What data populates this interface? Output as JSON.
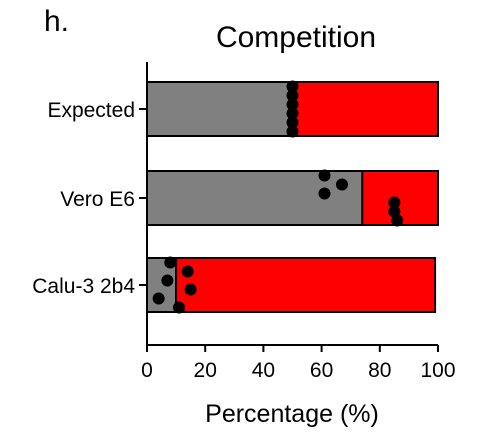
{
  "panel_label": "h.",
  "chart_data": {
    "type": "bar",
    "orientation": "horizontal",
    "stacked": true,
    "title": "Competition",
    "xlabel": "Percentage (%)",
    "ylabel": "",
    "xlim": [
      0,
      100
    ],
    "xticks": [
      0,
      20,
      40,
      60,
      80,
      100
    ],
    "categories": [
      "Expected",
      "Vero E6",
      "Calu-3 2b4"
    ],
    "series": [
      {
        "color": "#808080",
        "values": [
          49,
          74,
          10
        ]
      },
      {
        "color": "#ff0000",
        "values": [
          51,
          26,
          89
        ]
      }
    ],
    "points": [
      {
        "category": "Expected",
        "x": [
          50,
          50,
          50,
          50,
          50,
          50
        ]
      },
      {
        "category": "Vero E6",
        "x": [
          61,
          67,
          61,
          85,
          85,
          86
        ]
      },
      {
        "category": "Calu-3 2b4",
        "x": [
          8,
          14,
          7,
          15,
          4,
          11
        ]
      }
    ],
    "grid": false,
    "legend": "none"
  }
}
